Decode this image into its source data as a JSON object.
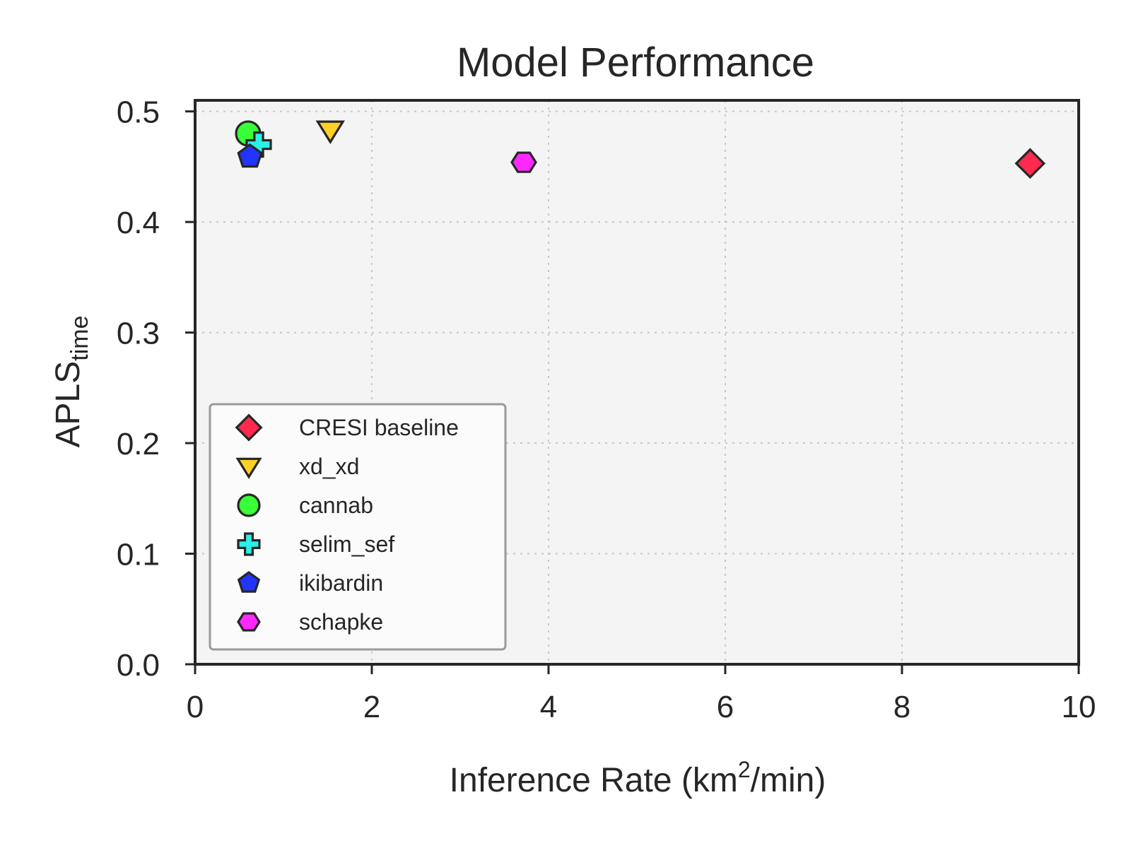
{
  "chart_data": {
    "type": "scatter",
    "title": "Model Performance",
    "xlabel": "Inference Rate (km",
    "xlabel_sup": "2",
    "xlabel_suffix": "/min)",
    "ylabel": "APLS",
    "ylabel_sub": "time",
    "xlim": [
      0,
      10
    ],
    "ylim": [
      0,
      0.51
    ],
    "xticks": [
      0,
      2,
      4,
      6,
      8,
      10
    ],
    "yticks": [
      0.0,
      0.1,
      0.2,
      0.3,
      0.4,
      0.5
    ],
    "xtick_labels": [
      "0",
      "2",
      "4",
      "6",
      "8",
      "10"
    ],
    "ytick_labels": [
      "0.0",
      "0.1",
      "0.2",
      "0.3",
      "0.4",
      "0.5"
    ],
    "grid": true,
    "legend_position": "lower-left",
    "series": [
      {
        "name": "CRESI baseline",
        "marker": "diamond",
        "color": "#ff2a4d",
        "x": 9.45,
        "y": 0.453
      },
      {
        "name": "xd_xd",
        "marker": "triangle-down",
        "color": "#ffd126",
        "x": 1.53,
        "y": 0.483
      },
      {
        "name": "cannab",
        "marker": "circle",
        "color": "#38ff38",
        "x": 0.6,
        "y": 0.48
      },
      {
        "name": "selim_sef",
        "marker": "plus",
        "color": "#2af0e8",
        "x": 0.72,
        "y": 0.47
      },
      {
        "name": "ikibardin",
        "marker": "pentagon",
        "color": "#2235ff",
        "x": 0.62,
        "y": 0.459
      },
      {
        "name": "schapke",
        "marker": "hexagon",
        "color": "#ff28ff",
        "x": 3.72,
        "y": 0.454
      }
    ]
  }
}
